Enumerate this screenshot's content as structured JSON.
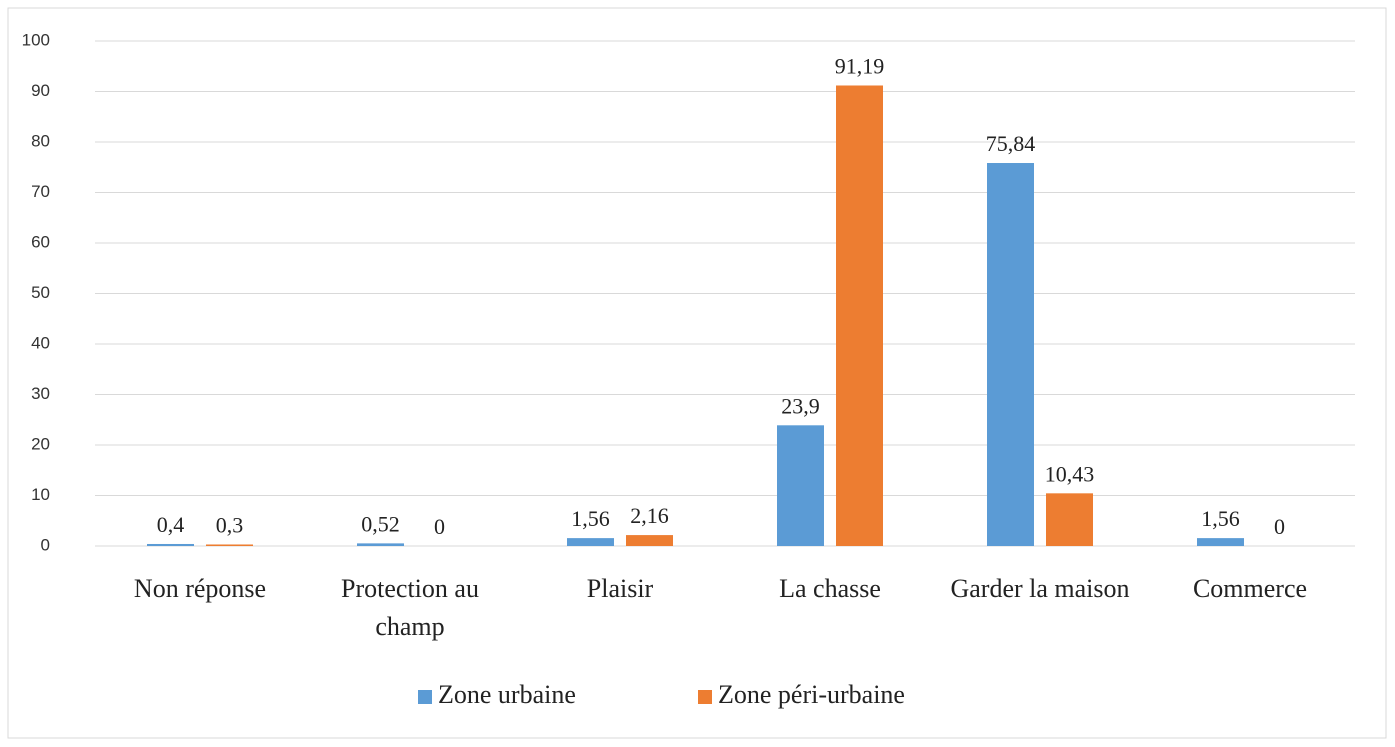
{
  "chart_data": {
    "type": "bar",
    "categories": [
      "Non réponse",
      "Protection au champ",
      "Plaisir",
      "La chasse",
      "Garder la maison",
      "Commerce"
    ],
    "series": [
      {
        "name": "Zone urbaine",
        "color": "#5b9bd5",
        "values": [
          0.4,
          0.52,
          1.56,
          23.9,
          75.84,
          1.56
        ],
        "value_labels": [
          "0,4",
          "0,52",
          "1,56",
          "23,9",
          "75,84",
          "1,56"
        ]
      },
      {
        "name": "Zone péri-urbaine",
        "color": "#ed7d31",
        "values": [
          0.3,
          0,
          2.16,
          91.19,
          10.43,
          0
        ],
        "value_labels": [
          "0,3",
          "0",
          "2,16",
          "91,19",
          "10,43",
          "0"
        ]
      }
    ],
    "ylim": [
      0,
      100
    ],
    "yticks": [
      0,
      10,
      20,
      30,
      40,
      50,
      60,
      70,
      80,
      90,
      100
    ],
    "grid": true,
    "legend": "bottom"
  }
}
